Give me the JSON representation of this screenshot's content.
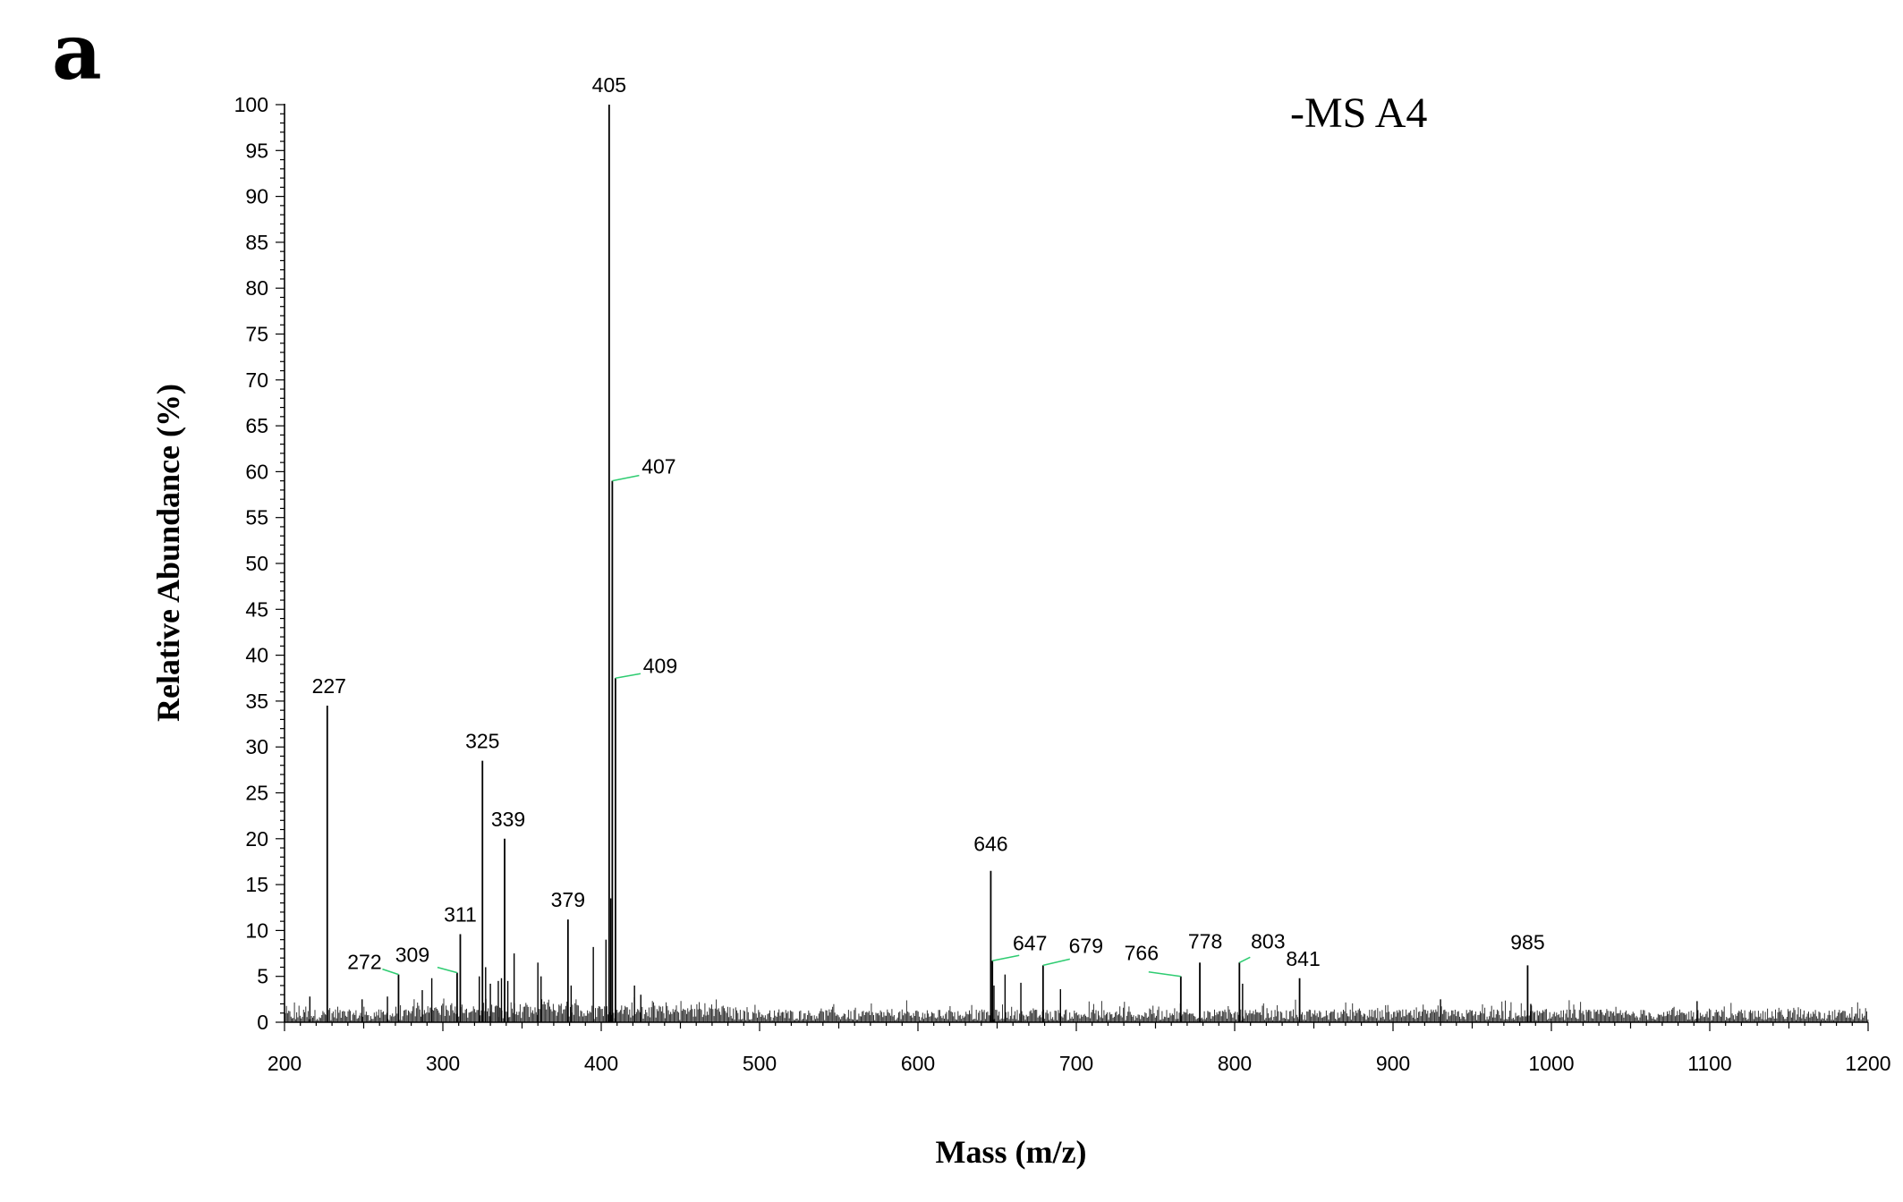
{
  "panel_label": "a",
  "chart_data": {
    "type": "line",
    "subtype": "mass-spectrum-stick",
    "title": "-MS A4",
    "xlabel": "Mass  (m/z)",
    "ylabel": "Relative Abundance (%)",
    "xlim": [
      200,
      1200
    ],
    "ylim": [
      0,
      100
    ],
    "x_ticks": [
      200,
      300,
      400,
      500,
      600,
      700,
      800,
      900,
      1000,
      1100,
      1200
    ],
    "y_ticks": [
      0,
      5,
      10,
      15,
      20,
      25,
      30,
      35,
      40,
      45,
      50,
      55,
      60,
      65,
      70,
      75,
      80,
      85,
      90,
      95,
      100
    ],
    "grid": false,
    "legend": "none",
    "colors": {
      "peaks": "#000000",
      "leader_lines": "#2ecc71",
      "axes": "#000000"
    },
    "labeled_peaks": [
      {
        "mz": 227,
        "label": "227",
        "abundance": 34.5
      },
      {
        "mz": 272,
        "label": "272",
        "abundance": 5.2
      },
      {
        "mz": 309,
        "label": "309",
        "abundance": 5.4
      },
      {
        "mz": 311,
        "label": "311",
        "abundance": 9.6
      },
      {
        "mz": 325,
        "label": "325",
        "abundance": 28.5
      },
      {
        "mz": 339,
        "label": "339",
        "abundance": 20.0
      },
      {
        "mz": 379,
        "label": "379",
        "abundance": 11.2
      },
      {
        "mz": 405,
        "label": "405",
        "abundance": 100
      },
      {
        "mz": 407,
        "label": "407",
        "abundance": 59.0
      },
      {
        "mz": 409,
        "label": "409",
        "abundance": 37.5
      },
      {
        "mz": 646,
        "label": "646",
        "abundance": 16.5
      },
      {
        "mz": 647,
        "label": "647",
        "abundance": 6.7
      },
      {
        "mz": 679,
        "label": "679",
        "abundance": 6.2
      },
      {
        "mz": 766,
        "label": "766",
        "abundance": 5.0
      },
      {
        "mz": 778,
        "label": "778",
        "abundance": 6.5
      },
      {
        "mz": 803,
        "label": "803",
        "abundance": 6.5
      },
      {
        "mz": 841,
        "label": "841",
        "abundance": 4.8
      },
      {
        "mz": 985,
        "label": "985",
        "abundance": 6.2
      }
    ],
    "minor_peaks": [
      {
        "mz": 216,
        "abundance": 2.8
      },
      {
        "mz": 249,
        "abundance": 2.5
      },
      {
        "mz": 265,
        "abundance": 2.8
      },
      {
        "mz": 287,
        "abundance": 3.5
      },
      {
        "mz": 293,
        "abundance": 4.8
      },
      {
        "mz": 323,
        "abundance": 5.0
      },
      {
        "mz": 327,
        "abundance": 6.0
      },
      {
        "mz": 330,
        "abundance": 4.2
      },
      {
        "mz": 335,
        "abundance": 4.5
      },
      {
        "mz": 337,
        "abundance": 4.8
      },
      {
        "mz": 341,
        "abundance": 4.5
      },
      {
        "mz": 345,
        "abundance": 7.5
      },
      {
        "mz": 360,
        "abundance": 6.5
      },
      {
        "mz": 362,
        "abundance": 5.0
      },
      {
        "mz": 381,
        "abundance": 4.0
      },
      {
        "mz": 395,
        "abundance": 8.2
      },
      {
        "mz": 403,
        "abundance": 9.0
      },
      {
        "mz": 406,
        "abundance": 13.5
      },
      {
        "mz": 421,
        "abundance": 4.0
      },
      {
        "mz": 425,
        "abundance": 3.0
      },
      {
        "mz": 648,
        "abundance": 4.0
      },
      {
        "mz": 655,
        "abundance": 5.2
      },
      {
        "mz": 665,
        "abundance": 4.3
      },
      {
        "mz": 690,
        "abundance": 3.6
      },
      {
        "mz": 805,
        "abundance": 4.2
      },
      {
        "mz": 930,
        "abundance": 2.5
      },
      {
        "mz": 987,
        "abundance": 2.0
      },
      {
        "mz": 1092,
        "abundance": 2.3
      }
    ]
  }
}
